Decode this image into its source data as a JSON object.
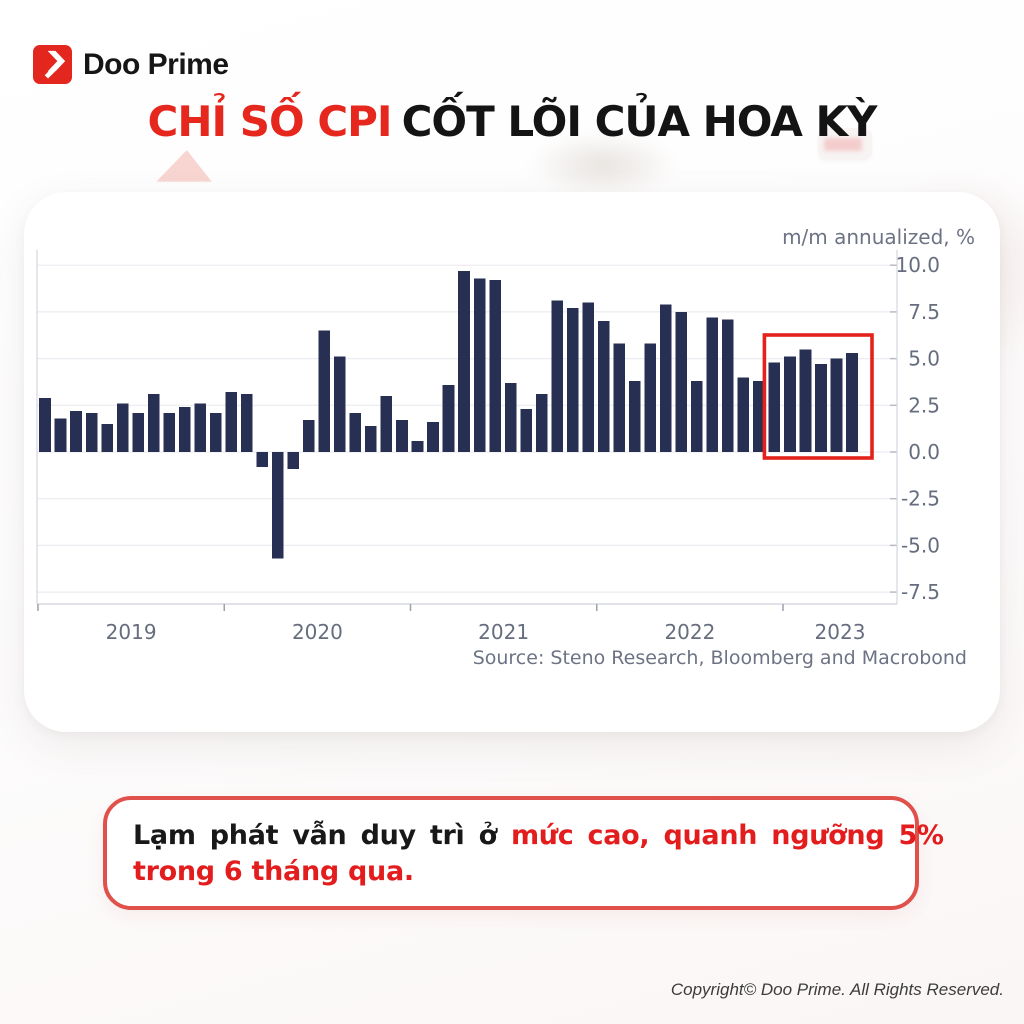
{
  "header": {
    "brand": "Doo Prime",
    "title_red": "CHỈ SỐ CPI",
    "title_black": "CỐT LÕI CỦA HOA KỲ"
  },
  "chart_data": {
    "type": "bar",
    "title": "US core CPI, m/m annualized %",
    "unit_label": "m/m annualized, %",
    "source": "Source: Steno Research, Bloomberg and Macrobond",
    "categories": [
      "2019-01",
      "2019-02",
      "2019-03",
      "2019-04",
      "2019-05",
      "2019-06",
      "2019-07",
      "2019-08",
      "2019-09",
      "2019-10",
      "2019-11",
      "2019-12",
      "2020-01",
      "2020-02",
      "2020-03",
      "2020-04",
      "2020-05",
      "2020-06",
      "2020-07",
      "2020-08",
      "2020-09",
      "2020-10",
      "2020-11",
      "2020-12",
      "2021-01",
      "2021-02",
      "2021-03",
      "2021-04",
      "2021-05",
      "2021-06",
      "2021-07",
      "2021-08",
      "2021-09",
      "2021-10",
      "2021-11",
      "2021-12",
      "2022-01",
      "2022-02",
      "2022-03",
      "2022-04",
      "2022-05",
      "2022-06",
      "2022-07",
      "2022-08",
      "2022-09",
      "2022-10",
      "2022-11",
      "2022-12",
      "2023-01",
      "2023-02",
      "2023-03",
      "2023-04",
      "2023-05"
    ],
    "values": [
      2.9,
      1.8,
      2.2,
      2.1,
      1.5,
      2.6,
      2.1,
      3.1,
      2.1,
      2.4,
      2.6,
      2.1,
      3.2,
      3.1,
      -0.8,
      -5.7,
      -0.9,
      1.7,
      6.5,
      5.1,
      2.1,
      1.4,
      3.0,
      1.7,
      0.6,
      1.6,
      3.6,
      9.7,
      9.3,
      9.2,
      3.7,
      2.3,
      3.1,
      8.1,
      7.7,
      8.0,
      7.0,
      5.8,
      3.8,
      5.8,
      7.9,
      7.5,
      3.8,
      7.2,
      7.1,
      4.0,
      3.8,
      4.8,
      5.1,
      5.5,
      4.7,
      5.0,
      5.3
    ],
    "year_labels": [
      "2019",
      "2020",
      "2021",
      "2022",
      "2023"
    ],
    "yticks": [
      10.0,
      7.5,
      5.0,
      2.5,
      0.0,
      -2.5,
      -5.0,
      -7.5
    ],
    "ylim": [
      -7.5,
      10.0
    ],
    "grid": true,
    "legend": "none",
    "bar_color": "#272f52",
    "axis_color": "#d6d7df",
    "grid_color": "#ececf1",
    "tick_label_color": "#666d7e",
    "highlight": {
      "start": "2022-12",
      "end": "2023-05",
      "start_index": 47,
      "end_index": 52,
      "color": "#e3231b"
    }
  },
  "note": {
    "line1_black": "Lạm phát vẫn duy trì ở",
    "line1_red": "mức cao, quanh ngưỡng 5%",
    "line2_red": "trong 6 tháng qua."
  },
  "footer": {
    "copyright": "Copyright© Doo Prime. All Rights Reserved."
  }
}
